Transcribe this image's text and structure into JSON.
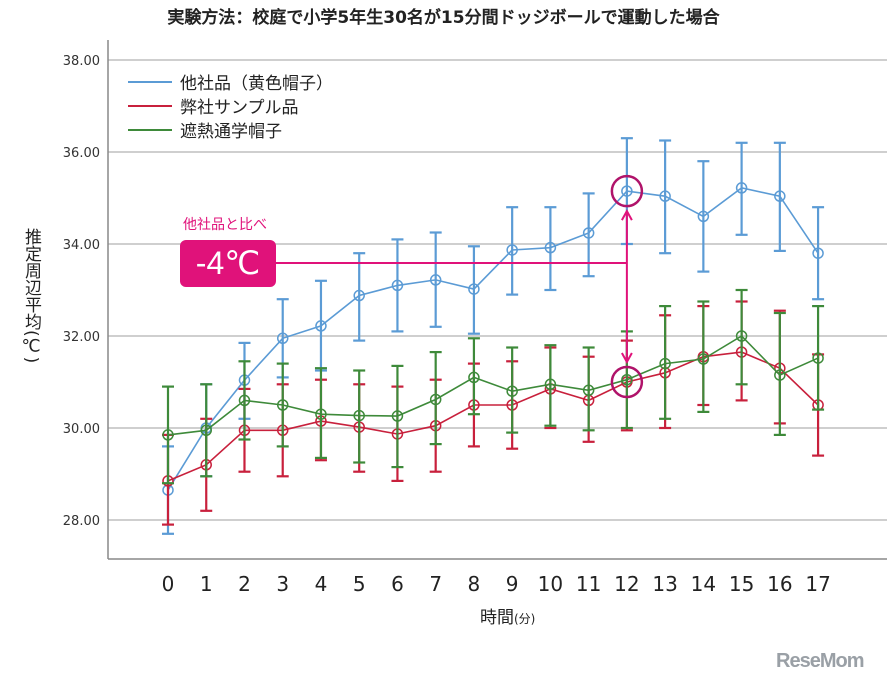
{
  "chart_data": {
    "type": "line",
    "title": "実験方法：校庭で小学5年生30名が15分間ドッジボールで運動した場合",
    "xlabel": "時間",
    "xlabel_unit": "(分)",
    "ylabel": "推定周辺平均(℃)",
    "ylim": [
      27.0,
      38.6
    ],
    "yticks": [
      "28.00",
      "30.00",
      "32.00",
      "34.00",
      "36.00",
      "38.00"
    ],
    "ytick_values": [
      28,
      30,
      32,
      34,
      36,
      38
    ],
    "x": [
      0,
      1,
      2,
      3,
      4,
      5,
      6,
      7,
      8,
      9,
      10,
      11,
      12,
      13,
      14,
      15,
      16,
      17
    ],
    "grid": true,
    "legend_position": "top-left",
    "series": [
      {
        "name": "他社品（黄色帽子）",
        "color": "#5b9bd5",
        "values": [
          28.65,
          30.0,
          31.04,
          31.95,
          32.22,
          32.88,
          33.1,
          33.22,
          33.02,
          33.87,
          33.92,
          34.24,
          35.15,
          35.04,
          34.6,
          35.22,
          35.04,
          33.8
        ],
        "lower": [
          27.7,
          28.95,
          30.2,
          31.1,
          31.25,
          31.9,
          32.1,
          32.2,
          32.05,
          32.9,
          33.0,
          33.3,
          34.0,
          33.8,
          33.4,
          34.2,
          33.85,
          32.8
        ],
        "upper": [
          29.6,
          30.95,
          31.85,
          32.8,
          33.2,
          33.8,
          34.1,
          34.25,
          33.95,
          34.8,
          34.8,
          35.1,
          36.3,
          36.25,
          35.8,
          36.2,
          36.2,
          34.8
        ]
      },
      {
        "name": "弊社サンプル品",
        "color": "#c8203c",
        "values": [
          28.85,
          29.2,
          29.95,
          29.95,
          30.15,
          30.02,
          29.87,
          30.05,
          30.5,
          30.5,
          30.85,
          30.6,
          31.0,
          31.2,
          31.55,
          31.65,
          31.3,
          30.5
        ],
        "lower": [
          27.9,
          28.2,
          29.05,
          28.95,
          29.3,
          29.05,
          28.85,
          29.05,
          29.6,
          29.55,
          30.0,
          29.7,
          29.95,
          30.0,
          30.5,
          30.6,
          30.1,
          29.4
        ],
        "upper": [
          29.85,
          30.2,
          30.85,
          30.95,
          31.05,
          30.95,
          30.9,
          31.05,
          31.4,
          31.45,
          31.75,
          31.55,
          31.9,
          32.45,
          32.65,
          32.75,
          32.55,
          31.6
        ]
      },
      {
        "name": "遮熱通学帽子",
        "color": "#3e8a3a",
        "values": [
          29.85,
          29.95,
          30.6,
          30.5,
          30.3,
          30.27,
          30.26,
          30.62,
          31.1,
          30.8,
          30.95,
          30.82,
          31.05,
          31.4,
          31.5,
          32.0,
          31.15,
          31.52
        ],
        "lower": [
          28.8,
          28.95,
          29.75,
          29.6,
          29.35,
          29.25,
          29.15,
          29.65,
          30.3,
          29.9,
          30.05,
          29.95,
          30.0,
          30.2,
          30.35,
          30.95,
          29.85,
          30.4
        ],
        "upper": [
          30.9,
          30.95,
          31.45,
          31.4,
          31.3,
          31.25,
          31.35,
          31.65,
          31.95,
          31.75,
          31.8,
          31.75,
          32.1,
          32.65,
          32.75,
          33.0,
          32.5,
          32.65
        ]
      }
    ],
    "annotation": {
      "label": "他社品と比べ",
      "value": "-4℃",
      "at_x": 12,
      "color": "#e0127a"
    }
  },
  "logo": "ReseMom"
}
